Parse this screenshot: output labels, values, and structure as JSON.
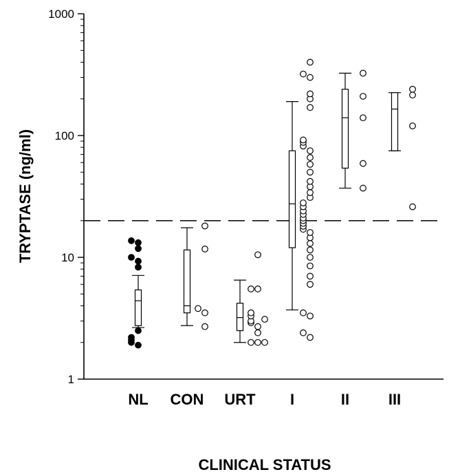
{
  "chart_data": {
    "type": "box",
    "xlabel": "CLINICAL STATUS",
    "ylabel": "TRYPTASE (ng/ml)",
    "yscale": "log",
    "ylim": [
      1,
      1000
    ],
    "yticks": [
      {
        "value": 1,
        "label": "1"
      },
      {
        "value": 10,
        "label": "10"
      },
      {
        "value": 100,
        "label": "100"
      },
      {
        "value": 1000,
        "label": "1000"
      }
    ],
    "reference_line": {
      "value": 20,
      "style": "dashed"
    },
    "grid": false,
    "groups": [
      {
        "label": "NL",
        "marker": "filled",
        "points_beside_box": false,
        "box": {
          "q1": 2.75,
          "median": 4.4,
          "q3": 5.4,
          "whisker_low": 2.65,
          "whisker_high": 7.1
        },
        "points": [
          1.9,
          2.0,
          2.1,
          2.2,
          2.5,
          8.3,
          9.3,
          10.0,
          11.8,
          13.2,
          13.7
        ]
      },
      {
        "label": "CON",
        "marker": "open",
        "points_beside_box": true,
        "box": {
          "q1": 3.5,
          "median": 4.0,
          "q3": 11.5,
          "whisker_low": 2.75,
          "whisker_high": 17.5
        },
        "points": [
          2.7,
          3.5,
          3.8,
          11.7,
          18.1
        ]
      },
      {
        "label": "URT",
        "marker": "open",
        "points_beside_box": true,
        "box": {
          "q1": 2.5,
          "median": 3.2,
          "q3": 4.2,
          "whisker_low": 2.0,
          "whisker_high": 6.5
        },
        "points": [
          2.0,
          2.0,
          2.0,
          2.4,
          2.7,
          2.9,
          3.0,
          3.1,
          3.3,
          3.5,
          5.5,
          5.5,
          10.5
        ]
      },
      {
        "label": "I",
        "marker": "open",
        "points_beside_box": true,
        "box": {
          "q1": 12.0,
          "median": 27.5,
          "q3": 75.0,
          "whisker_low": 3.7,
          "whisker_high": 190
        },
        "points": [
          2.2,
          2.4,
          3.3,
          3.5,
          6.0,
          7.0,
          8.5,
          10.0,
          11.5,
          13.0,
          14.5,
          16.0,
          17.0,
          18.0,
          19.0,
          20.0,
          21.0,
          22.5,
          24.0,
          26.0,
          28.0,
          31.0,
          34.0,
          38.0,
          42.0,
          50.0,
          58.0,
          66.0,
          75.0,
          82.0,
          88.0,
          92.0,
          170,
          200,
          220,
          300,
          320,
          400
        ]
      },
      {
        "label": "II",
        "marker": "open",
        "points_beside_box": true,
        "box": {
          "q1": 54,
          "median": 140,
          "q3": 240,
          "whisker_low": 37,
          "whisker_high": 325
        },
        "points": [
          37,
          59,
          140,
          210,
          325
        ]
      },
      {
        "label": "III",
        "marker": "open",
        "points_beside_box": true,
        "box": {
          "q1": 75,
          "median": 165,
          "q3": 225,
          "whisker_low": 75,
          "whisker_high": 225
        },
        "points": [
          26,
          120,
          215,
          240
        ]
      }
    ]
  }
}
